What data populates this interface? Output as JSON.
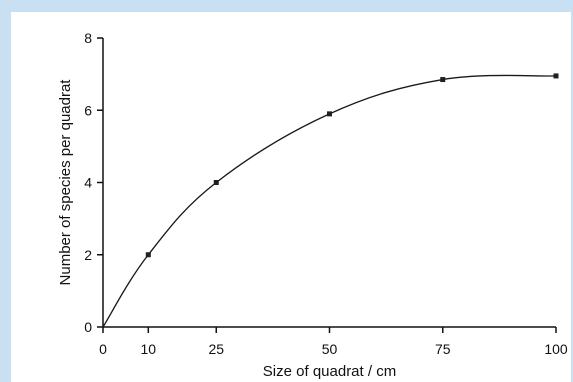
{
  "chart_data": {
    "type": "scatter",
    "title": "",
    "xlabel": "Size of quadrat / cm",
    "ylabel": "Number of species per quadrat",
    "xlim": [
      0,
      100
    ],
    "ylim": [
      0,
      8
    ],
    "x_ticks": [
      0,
      10,
      25,
      50,
      75,
      100
    ],
    "y_ticks": [
      0,
      2,
      4,
      6,
      8
    ],
    "x_tick_labels": [
      "0",
      "10",
      "25",
      "50",
      "75",
      "100"
    ],
    "y_tick_labels": [
      "0",
      "2",
      "4",
      "6",
      "8"
    ],
    "grid": false,
    "legend": "none",
    "points": {
      "x": [
        10,
        25,
        50,
        75,
        100
      ],
      "y": [
        2,
        4,
        5.9,
        6.85,
        6.95
      ]
    },
    "curve": {
      "x": [
        0,
        10,
        25,
        50,
        75,
        100
      ],
      "y": [
        0,
        2,
        4,
        5.9,
        6.85,
        6.95
      ]
    }
  }
}
